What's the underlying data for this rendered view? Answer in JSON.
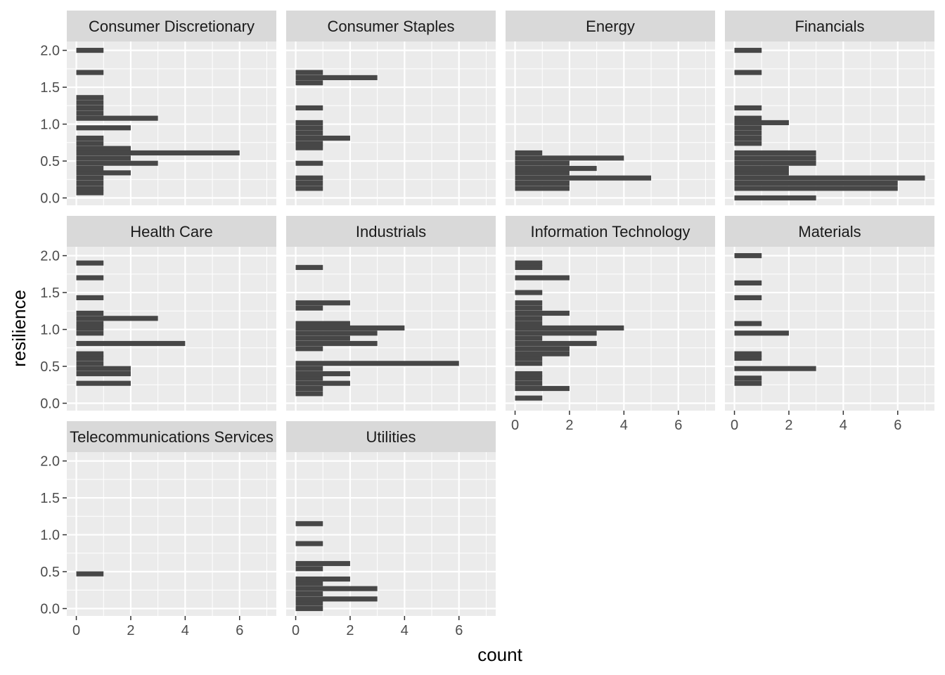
{
  "chart_data": {
    "type": "bar",
    "orientation": "horizontal",
    "xlabel": "count",
    "ylabel": "resilience",
    "xlim": [
      -0.35,
      7.35
    ],
    "ylim": [
      -0.1,
      2.12
    ],
    "xticks": [
      0,
      2,
      4,
      6
    ],
    "yticks": [
      0.0,
      0.5,
      1.0,
      1.5,
      2.0
    ],
    "xtick_labels": [
      "0",
      "2",
      "4",
      "6"
    ],
    "ytick_labels": [
      "0.0",
      "0.5",
      "1.0",
      "1.5",
      "2.0"
    ],
    "bin_width": 0.0681,
    "grid": true,
    "legend": "none",
    "colors": {
      "bar": "#474747",
      "panel": "#ebebeb",
      "strip": "#d9d9d9",
      "grid": "#ffffff"
    },
    "facets": [
      {
        "name": "Consumer Discretionary",
        "bins": [
          [
            0.07,
            1
          ],
          [
            0.13,
            1
          ],
          [
            0.2,
            1
          ],
          [
            0.27,
            1
          ],
          [
            0.34,
            2
          ],
          [
            0.4,
            1
          ],
          [
            0.47,
            3
          ],
          [
            0.54,
            2
          ],
          [
            0.61,
            6
          ],
          [
            0.67,
            2
          ],
          [
            0.74,
            1
          ],
          [
            0.81,
            1
          ],
          [
            0.95,
            2
          ],
          [
            1.08,
            3
          ],
          [
            1.15,
            1
          ],
          [
            1.22,
            1
          ],
          [
            1.29,
            1
          ],
          [
            1.36,
            1
          ],
          [
            1.7,
            1
          ],
          [
            2.0,
            1
          ]
        ]
      },
      {
        "name": "Consumer Staples",
        "bins": [
          [
            0.13,
            1
          ],
          [
            0.2,
            1
          ],
          [
            0.27,
            1
          ],
          [
            0.47,
            1
          ],
          [
            0.68,
            1
          ],
          [
            0.74,
            1
          ],
          [
            0.81,
            2
          ],
          [
            0.88,
            1
          ],
          [
            0.95,
            1
          ],
          [
            1.02,
            1
          ],
          [
            1.22,
            1
          ],
          [
            1.56,
            1
          ],
          [
            1.63,
            3
          ],
          [
            1.7,
            1
          ]
        ]
      },
      {
        "name": "Energy",
        "bins": [
          [
            0.13,
            2
          ],
          [
            0.2,
            2
          ],
          [
            0.27,
            5
          ],
          [
            0.34,
            2
          ],
          [
            0.4,
            3
          ],
          [
            0.47,
            2
          ],
          [
            0.54,
            4
          ],
          [
            0.61,
            1
          ]
        ]
      },
      {
        "name": "Financials",
        "bins": [
          [
            0.0,
            3
          ],
          [
            0.13,
            6
          ],
          [
            0.2,
            6
          ],
          [
            0.27,
            7
          ],
          [
            0.34,
            2
          ],
          [
            0.4,
            2
          ],
          [
            0.47,
            3
          ],
          [
            0.54,
            3
          ],
          [
            0.61,
            3
          ],
          [
            0.74,
            1
          ],
          [
            0.81,
            1
          ],
          [
            0.88,
            1
          ],
          [
            0.95,
            1
          ],
          [
            1.02,
            2
          ],
          [
            1.08,
            1
          ],
          [
            1.22,
            1
          ],
          [
            1.7,
            1
          ],
          [
            2.0,
            1
          ]
        ]
      },
      {
        "name": "Health Care",
        "bins": [
          [
            0.27,
            2
          ],
          [
            0.4,
            2
          ],
          [
            0.47,
            2
          ],
          [
            0.54,
            1
          ],
          [
            0.61,
            1
          ],
          [
            0.67,
            1
          ],
          [
            0.81,
            4
          ],
          [
            0.95,
            1
          ],
          [
            1.02,
            1
          ],
          [
            1.08,
            1
          ],
          [
            1.15,
            3
          ],
          [
            1.22,
            1
          ],
          [
            1.43,
            1
          ],
          [
            1.7,
            1
          ],
          [
            1.9,
            1
          ]
        ]
      },
      {
        "name": "Industrials",
        "bins": [
          [
            0.13,
            1
          ],
          [
            0.2,
            1
          ],
          [
            0.27,
            2
          ],
          [
            0.34,
            1
          ],
          [
            0.4,
            2
          ],
          [
            0.47,
            1
          ],
          [
            0.54,
            6
          ],
          [
            0.74,
            1
          ],
          [
            0.81,
            3
          ],
          [
            0.88,
            2
          ],
          [
            0.95,
            3
          ],
          [
            1.02,
            4
          ],
          [
            1.08,
            2
          ],
          [
            1.29,
            1
          ],
          [
            1.36,
            2
          ],
          [
            1.84,
            1
          ]
        ]
      },
      {
        "name": "Information Technology",
        "bins": [
          [
            0.07,
            1
          ],
          [
            0.2,
            2
          ],
          [
            0.27,
            1
          ],
          [
            0.34,
            1
          ],
          [
            0.4,
            1
          ],
          [
            0.54,
            1
          ],
          [
            0.61,
            1
          ],
          [
            0.67,
            2
          ],
          [
            0.74,
            2
          ],
          [
            0.81,
            3
          ],
          [
            0.88,
            1
          ],
          [
            0.95,
            3
          ],
          [
            1.02,
            4
          ],
          [
            1.08,
            1
          ],
          [
            1.15,
            1
          ],
          [
            1.22,
            2
          ],
          [
            1.29,
            1
          ],
          [
            1.36,
            1
          ],
          [
            1.5,
            1
          ],
          [
            1.7,
            2
          ],
          [
            1.84,
            1
          ],
          [
            1.9,
            1
          ]
        ]
      },
      {
        "name": "Materials",
        "bins": [
          [
            0.27,
            1
          ],
          [
            0.34,
            1
          ],
          [
            0.47,
            3
          ],
          [
            0.61,
            1
          ],
          [
            0.67,
            1
          ],
          [
            0.95,
            2
          ],
          [
            1.08,
            1
          ],
          [
            1.43,
            1
          ],
          [
            1.63,
            1
          ],
          [
            2.0,
            1
          ]
        ]
      },
      {
        "name": "Telecommunications Services",
        "bins": [
          [
            0.47,
            1
          ]
        ]
      },
      {
        "name": "Utilities",
        "bins": [
          [
            0.0,
            1
          ],
          [
            0.07,
            1
          ],
          [
            0.13,
            3
          ],
          [
            0.2,
            1
          ],
          [
            0.27,
            3
          ],
          [
            0.34,
            1
          ],
          [
            0.4,
            2
          ],
          [
            0.54,
            1
          ],
          [
            0.61,
            2
          ],
          [
            0.88,
            1
          ],
          [
            1.15,
            1
          ]
        ]
      }
    ]
  }
}
